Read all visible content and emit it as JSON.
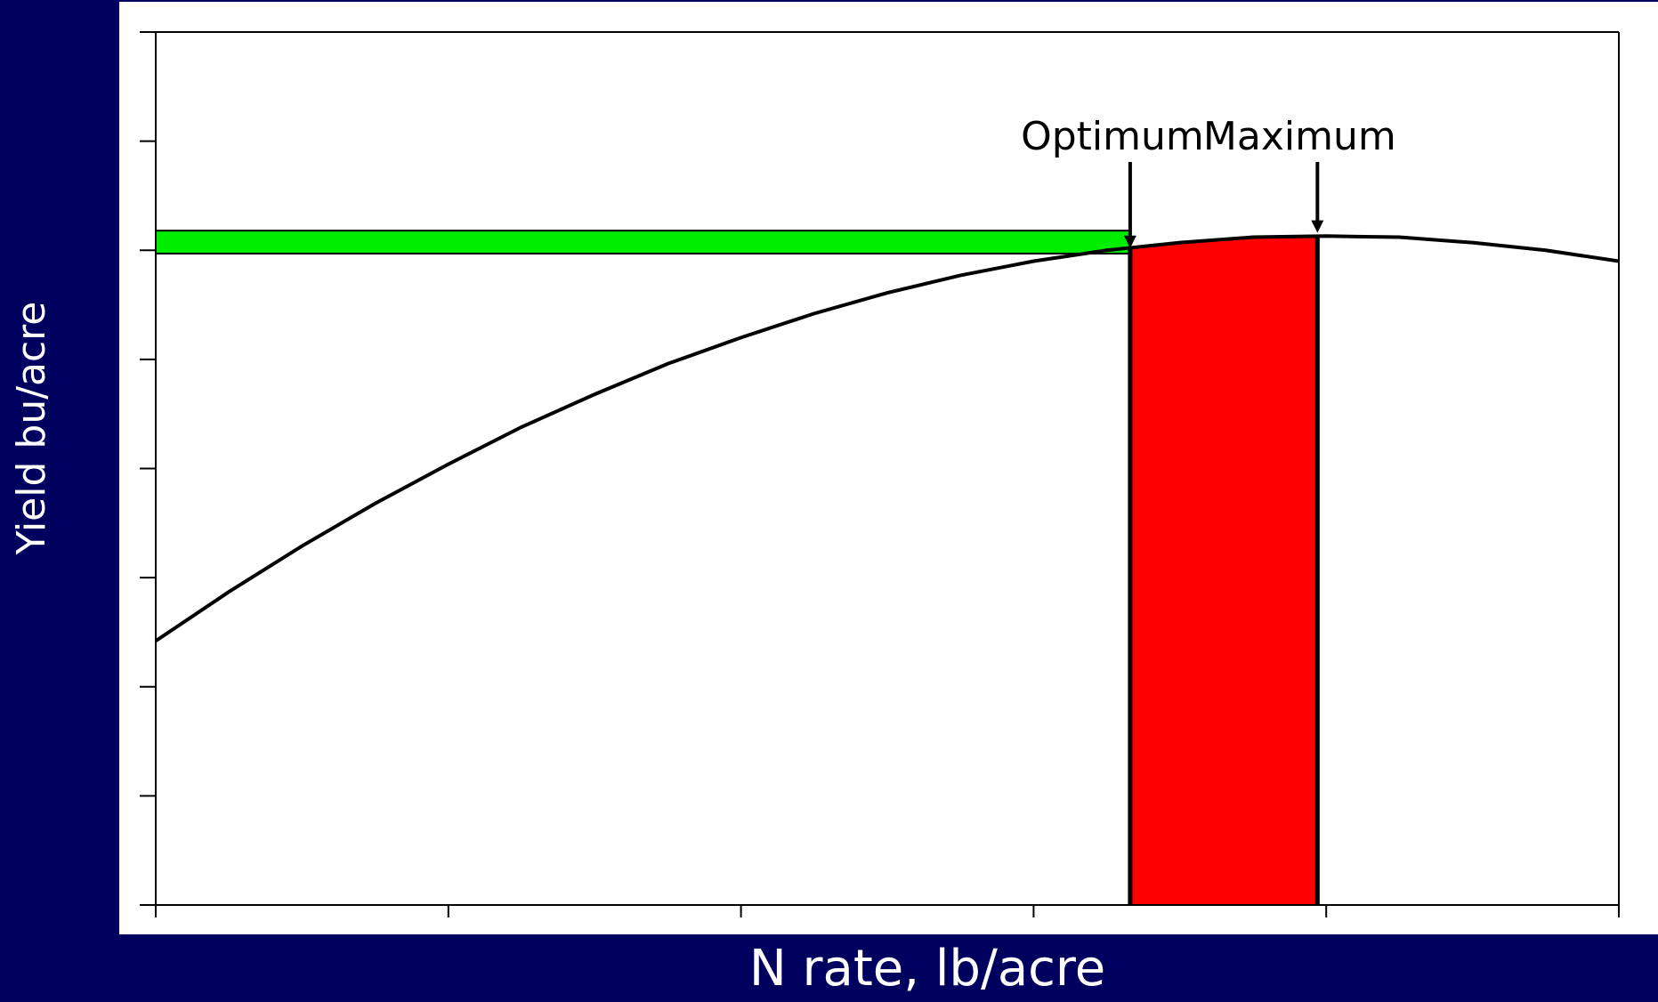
{
  "chart_data": {
    "type": "line",
    "xlabel": "N rate, lb/acre",
    "ylabel": "Yield bu/acre",
    "xlim": [
      0,
      5
    ],
    "ylim": [
      0,
      8
    ],
    "xticks": [
      0,
      1,
      2,
      3,
      4,
      5
    ],
    "yticks": [
      0,
      1,
      2,
      3,
      4,
      5,
      6,
      7,
      8
    ],
    "series": [
      {
        "color": "#000000",
        "x": [
          0,
          0.25,
          0.5,
          0.75,
          1,
          1.25,
          1.5,
          1.75,
          2,
          2.25,
          2.5,
          2.75,
          3,
          3.25,
          3.5,
          3.75,
          4,
          4.25,
          4.5,
          4.75,
          5
        ],
        "values": [
          2.42,
          2.87,
          3.29,
          3.68,
          4.04,
          4.38,
          4.68,
          4.96,
          5.2,
          5.42,
          5.61,
          5.77,
          5.9,
          6.0,
          6.07,
          6.12,
          6.13,
          6.12,
          6.07,
          6.0,
          5.9
        ]
      }
    ],
    "bands": [
      {
        "color": "#00ee00",
        "x": [
          0,
          3.33
        ],
        "y": [
          5.97,
          6.18
        ]
      }
    ],
    "areas": [
      {
        "color": "#ff0000",
        "x": [
          3.33,
          3.97
        ]
      }
    ],
    "annotations": [
      {
        "label": "Optimum",
        "x": 3.33,
        "y": 6.02
      },
      {
        "label": "Maximum",
        "x": 3.97,
        "y": 6.16
      }
    ]
  }
}
